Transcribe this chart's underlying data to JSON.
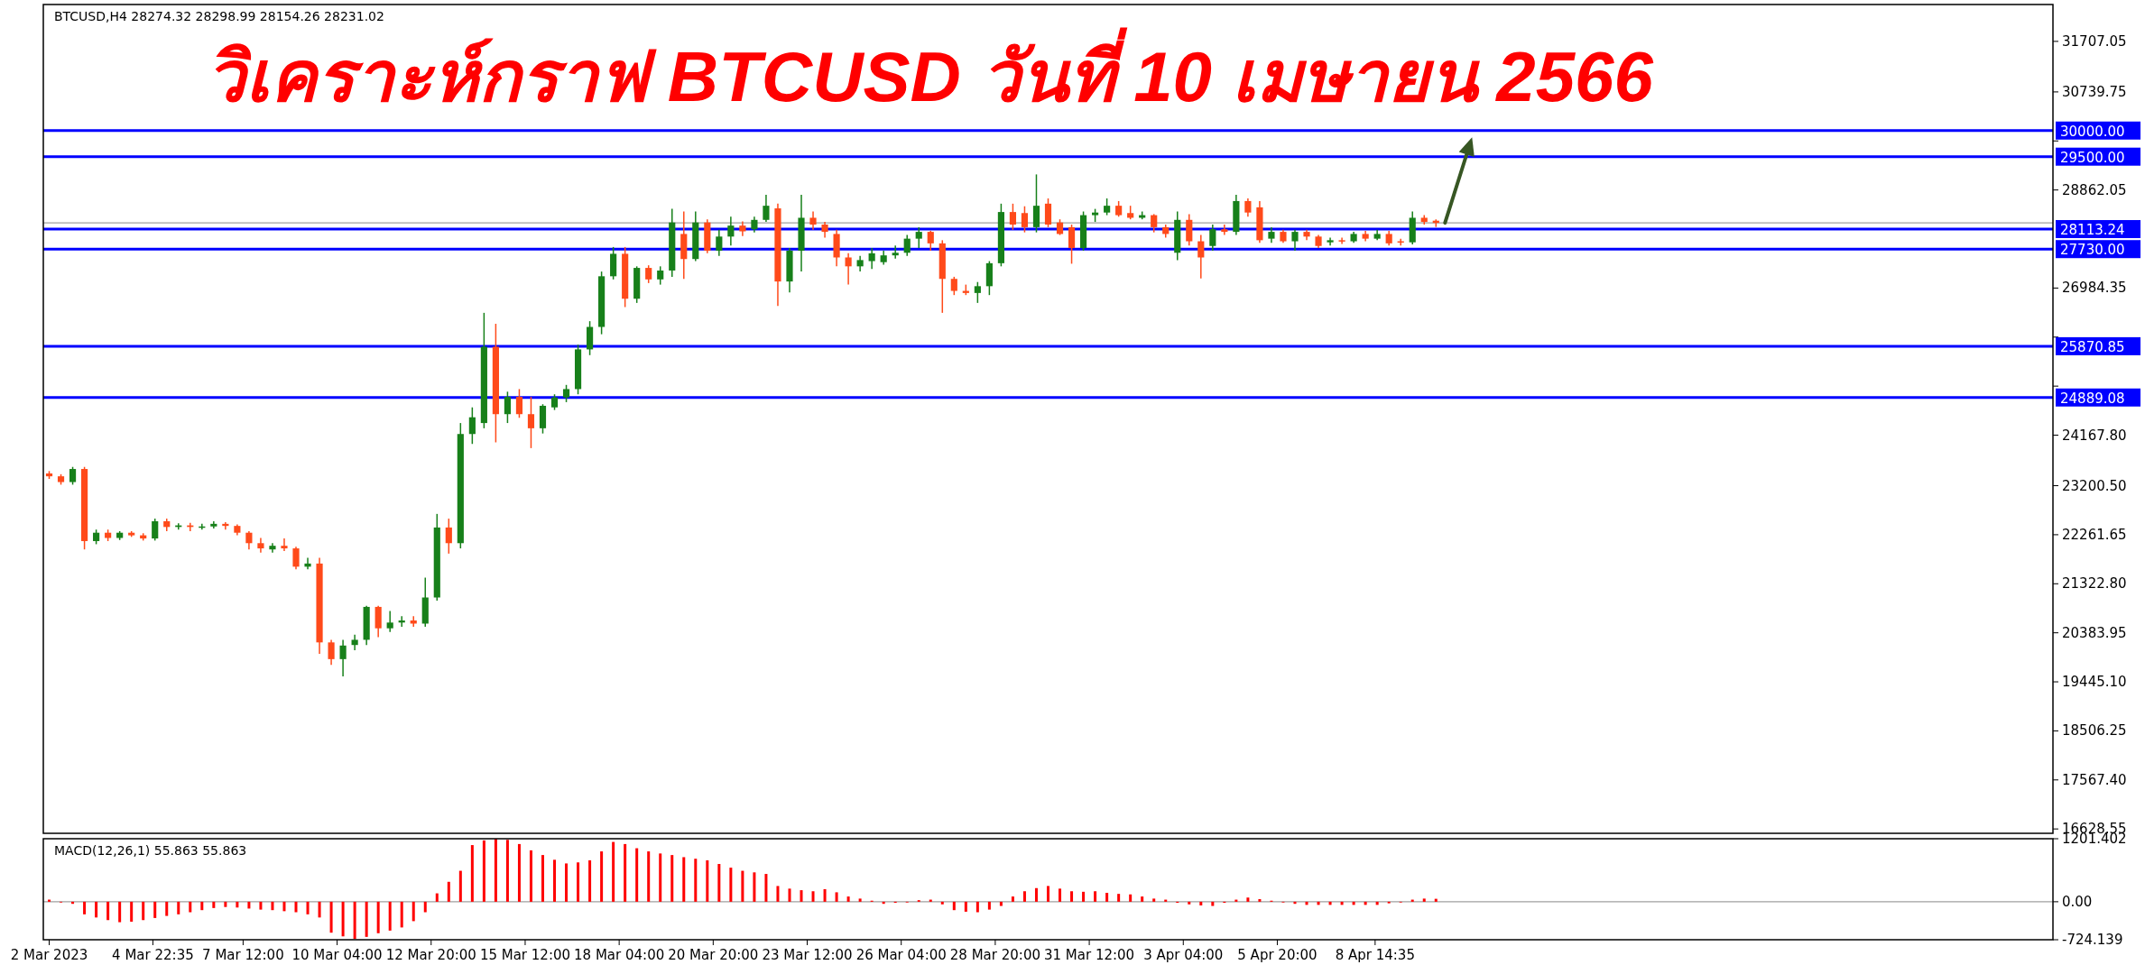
{
  "chart_data": [
    {
      "type": "candlestick",
      "title": "วิเคราะห์กราฟ BTCUSD วันที่ 10 เมษายน 2566",
      "annotations": [
        "BTCUSD,H4 28274.32 28298.99 28154.26 28231.02"
      ],
      "x": [
        "2023-03-02T00:00",
        "2023-03-02T08:00",
        "2023-03-02T16:00",
        "2023-03-03T00:00",
        "2023-03-03T08:00",
        "2023-03-03T16:00",
        "2023-03-04T00:00",
        "2023-03-04T08:00",
        "2023-03-04T16:00",
        "2023-03-05T00:00",
        "2023-03-05T08:00",
        "2023-03-05T16:00",
        "2023-03-06T00:00",
        "2023-03-06T08:00",
        "2023-03-06T16:00",
        "2023-03-07T00:00",
        "2023-03-07T08:00",
        "2023-03-07T16:00",
        "2023-03-08T00:00",
        "2023-03-08T08:00",
        "2023-03-08T16:00",
        "2023-03-09T00:00",
        "2023-03-09T08:00",
        "2023-03-09T16:00",
        "2023-03-10T00:00",
        "2023-03-10T08:00",
        "2023-03-10T16:00",
        "2023-03-11T00:00",
        "2023-03-11T08:00",
        "2023-03-11T16:00",
        "2023-03-12T00:00",
        "2023-03-12T08:00",
        "2023-03-12T16:00",
        "2023-03-13T00:00",
        "2023-03-13T08:00",
        "2023-03-13T16:00",
        "2023-03-14T00:00",
        "2023-03-14T08:00",
        "2023-03-14T16:00",
        "2023-03-15T00:00",
        "2023-03-15T08:00",
        "2023-03-15T16:00",
        "2023-03-16T00:00",
        "2023-03-16T08:00",
        "2023-03-16T16:00",
        "2023-03-17T00:00",
        "2023-03-17T08:00",
        "2023-03-17T16:00",
        "2023-03-18T00:00",
        "2023-03-18T08:00",
        "2023-03-18T16:00",
        "2023-03-19T00:00",
        "2023-03-19T08:00",
        "2023-03-19T16:00",
        "2023-03-20T00:00",
        "2023-03-20T08:00",
        "2023-03-20T16:00",
        "2023-03-21T00:00",
        "2023-03-21T08:00",
        "2023-03-21T16:00",
        "2023-03-22T00:00",
        "2023-03-22T08:00",
        "2023-03-22T16:00",
        "2023-03-23T00:00",
        "2023-03-23T08:00",
        "2023-03-23T16:00",
        "2023-03-24T00:00",
        "2023-03-24T08:00",
        "2023-03-24T16:00",
        "2023-03-25T00:00",
        "2023-03-25T08:00",
        "2023-03-25T16:00",
        "2023-03-26T00:00",
        "2023-03-26T08:00",
        "2023-03-26T16:00",
        "2023-03-27T00:00",
        "2023-03-27T08:00",
        "2023-03-27T16:00",
        "2023-03-28T00:00",
        "2023-03-28T08:00",
        "2023-03-28T16:00",
        "2023-03-29T00:00",
        "2023-03-29T08:00",
        "2023-03-29T16:00",
        "2023-03-30T00:00",
        "2023-03-30T08:00",
        "2023-03-30T16:00",
        "2023-03-31T00:00",
        "2023-03-31T08:00",
        "2023-03-31T16:00",
        "2023-04-01T00:00",
        "2023-04-01T08:00",
        "2023-04-01T16:00",
        "2023-04-02T00:00",
        "2023-04-02T08:00",
        "2023-04-02T16:00",
        "2023-04-03T00:00",
        "2023-04-03T08:00",
        "2023-04-03T16:00",
        "2023-04-04T00:00",
        "2023-04-04T08:00",
        "2023-04-04T16:00",
        "2023-04-05T00:00",
        "2023-04-05T08:00",
        "2023-04-05T16:00",
        "2023-04-06T00:00",
        "2023-04-06T08:00",
        "2023-04-06T16:00",
        "2023-04-07T00:00",
        "2023-04-07T08:00",
        "2023-04-07T16:00",
        "2023-04-08T00:00",
        "2023-04-08T08:00",
        "2023-04-08T16:00",
        "2023-04-09T00:00",
        "2023-04-09T08:00",
        "2023-04-09T16:00",
        "2023-04-10T00:00",
        "2023-04-10T08:00"
      ],
      "ohlc": [
        [
          23435,
          23480,
          23330,
          23380
        ],
        [
          23380,
          23420,
          23220,
          23270
        ],
        [
          23270,
          23560,
          23220,
          23520
        ],
        [
          23520,
          23560,
          21980,
          22140
        ],
        [
          22140,
          22360,
          22080,
          22300
        ],
        [
          22300,
          22360,
          22140,
          22200
        ],
        [
          22200,
          22330,
          22160,
          22300
        ],
        [
          22300,
          22330,
          22220,
          22250
        ],
        [
          22250,
          22290,
          22150,
          22190
        ],
        [
          22190,
          22570,
          22150,
          22520
        ],
        [
          22520,
          22570,
          22330,
          22410
        ],
        [
          22410,
          22480,
          22360,
          22440
        ],
        [
          22440,
          22490,
          22330,
          22410
        ],
        [
          22410,
          22470,
          22360,
          22420
        ],
        [
          22420,
          22520,
          22380,
          22470
        ],
        [
          22470,
          22500,
          22360,
          22430
        ],
        [
          22430,
          22460,
          22250,
          22300
        ],
        [
          22300,
          22330,
          21980,
          22100
        ],
        [
          22100,
          22200,
          21920,
          22000
        ],
        [
          21980,
          22100,
          21920,
          22050
        ],
        [
          22050,
          22190,
          21950,
          22000
        ],
        [
          22000,
          22030,
          21600,
          21650
        ],
        [
          21650,
          21820,
          21600,
          21710
        ],
        [
          21710,
          21820,
          19980,
          20200
        ],
        [
          20200,
          20250,
          19770,
          19880
        ],
        [
          19880,
          20250,
          19550,
          20140
        ],
        [
          20150,
          20350,
          20050,
          20250
        ],
        [
          20250,
          20900,
          20150,
          20880
        ],
        [
          20880,
          20900,
          20300,
          20470
        ],
        [
          20470,
          20800,
          20400,
          20580
        ],
        [
          20580,
          20700,
          20500,
          20620
        ],
        [
          20620,
          20700,
          20500,
          20560
        ],
        [
          20560,
          21440,
          20500,
          21060
        ],
        [
          21060,
          22660,
          21000,
          22400
        ],
        [
          22400,
          22570,
          21900,
          22100
        ],
        [
          22100,
          24400,
          22000,
          24190
        ],
        [
          24190,
          24700,
          24000,
          24510
        ],
        [
          24400,
          26510,
          24300,
          25860
        ],
        [
          25860,
          26300,
          24030,
          24570
        ],
        [
          24570,
          25000,
          24400,
          24900
        ],
        [
          24900,
          25050,
          24500,
          24570
        ],
        [
          24570,
          24900,
          23920,
          24300
        ],
        [
          24300,
          24760,
          24200,
          24730
        ],
        [
          24700,
          24950,
          24650,
          24890
        ],
        [
          24890,
          25130,
          24800,
          25050
        ],
        [
          25050,
          25900,
          24950,
          25810
        ],
        [
          25810,
          26350,
          25700,
          26240
        ],
        [
          26240,
          27300,
          26100,
          27210
        ],
        [
          27210,
          27770,
          27150,
          27640
        ],
        [
          27640,
          27770,
          26620,
          26780
        ],
        [
          26780,
          27400,
          26700,
          27370
        ],
        [
          27370,
          27420,
          27080,
          27150
        ],
        [
          27150,
          27400,
          27050,
          27320
        ],
        [
          27320,
          28500,
          27200,
          28240
        ],
        [
          28020,
          28450,
          27160,
          27540
        ],
        [
          27540,
          28450,
          27500,
          28240
        ],
        [
          28240,
          28300,
          27650,
          27700
        ],
        [
          27700,
          28100,
          27600,
          27970
        ],
        [
          27970,
          28350,
          27800,
          28180
        ],
        [
          28180,
          28260,
          27980,
          28070
        ],
        [
          28110,
          28350,
          28050,
          28290
        ],
        [
          28290,
          28770,
          28250,
          28560
        ],
        [
          28510,
          28600,
          26640,
          27110
        ],
        [
          27110,
          27750,
          26900,
          27700
        ],
        [
          27700,
          28770,
          27300,
          28330
        ],
        [
          28330,
          28450,
          28100,
          28200
        ],
        [
          28200,
          28250,
          27950,
          28060
        ],
        [
          28020,
          28100,
          27400,
          27570
        ],
        [
          27570,
          27650,
          27050,
          27400
        ],
        [
          27400,
          27600,
          27300,
          27520
        ],
        [
          27500,
          27750,
          27350,
          27650
        ],
        [
          27480,
          27700,
          27430,
          27610
        ],
        [
          27610,
          27800,
          27550,
          27660
        ],
        [
          27660,
          28000,
          27600,
          27930
        ],
        [
          27930,
          28150,
          27750,
          28060
        ],
        [
          28060,
          28080,
          27700,
          27840
        ],
        [
          27840,
          27900,
          26510,
          27160
        ],
        [
          27160,
          27200,
          26850,
          26930
        ],
        [
          26930,
          27050,
          26850,
          26890
        ],
        [
          26890,
          27100,
          26700,
          27020
        ],
        [
          27020,
          27500,
          26850,
          27460
        ],
        [
          27460,
          28600,
          27400,
          28440
        ],
        [
          28440,
          28600,
          28100,
          28200
        ],
        [
          28420,
          28550,
          28050,
          28150
        ],
        [
          28150,
          29160,
          28050,
          28560
        ],
        [
          28600,
          28700,
          28150,
          28200
        ],
        [
          28240,
          28300,
          28000,
          28020
        ],
        [
          28150,
          28200,
          27450,
          27750
        ],
        [
          27750,
          28450,
          27700,
          28380
        ],
        [
          28380,
          28500,
          28250,
          28430
        ],
        [
          28430,
          28700,
          28380,
          28560
        ],
        [
          28560,
          28650,
          28350,
          28380
        ],
        [
          28420,
          28560,
          28300,
          28330
        ],
        [
          28330,
          28450,
          28300,
          28380
        ],
        [
          28380,
          28400,
          28050,
          28150
        ],
        [
          28150,
          28200,
          27950,
          28020
        ],
        [
          27660,
          28450,
          27520,
          28290
        ],
        [
          28290,
          28400,
          27800,
          27880
        ],
        [
          27880,
          28000,
          27170,
          27570
        ],
        [
          27790,
          28200,
          27700,
          28110
        ],
        [
          28110,
          28200,
          28000,
          28060
        ],
        [
          28060,
          28770,
          28000,
          28650
        ],
        [
          28650,
          28700,
          28350,
          28430
        ],
        [
          28530,
          28650,
          27850,
          27900
        ],
        [
          27930,
          28150,
          27850,
          28060
        ],
        [
          28060,
          28100,
          27850,
          27880
        ],
        [
          27880,
          28100,
          27700,
          28060
        ],
        [
          28060,
          28100,
          27900,
          27970
        ],
        [
          27970,
          28000,
          27750,
          27790
        ],
        [
          27860,
          27950,
          27800,
          27900
        ],
        [
          27900,
          27950,
          27830,
          27880
        ],
        [
          27880,
          28060,
          27850,
          28020
        ],
        [
          28020,
          28080,
          27880,
          27930
        ],
        [
          27930,
          28100,
          27900,
          28020
        ],
        [
          28020,
          28080,
          27800,
          27840
        ],
        [
          27880,
          27930,
          27800,
          27860
        ],
        [
          27860,
          28450,
          27820,
          28330
        ],
        [
          28330,
          28380,
          28200,
          28250
        ],
        [
          28274.32,
          28298.99,
          28154.26,
          28231.02
        ]
      ],
      "xlim": [
        "2023-03-01T20:00",
        "2023-04-27T20:00"
      ],
      "ylim": [
        16545,
        32413
      ],
      "yticks": [
        {
          "value": 31707.05,
          "label": "31707.05"
        },
        {
          "value": 30739.75,
          "label": "30739.75"
        },
        {
          "value": 29800.9,
          "label": null
        },
        {
          "value": 28862.05,
          "label": "28862.05"
        },
        {
          "value": 26984.35,
          "label": "26984.35"
        },
        {
          "value": 26045.5,
          "label": null
        },
        {
          "value": 25106.65,
          "label": null
        },
        {
          "value": 24167.8,
          "label": "24167.80"
        },
        {
          "value": 23200.5,
          "label": "23200.50"
        },
        {
          "value": 22261.65,
          "label": "22261.65"
        },
        {
          "value": 21322.8,
          "label": "21322.80"
        },
        {
          "value": 20383.95,
          "label": "20383.95"
        },
        {
          "value": 19445.1,
          "label": "19445.10"
        },
        {
          "value": 18506.25,
          "label": "18506.25"
        },
        {
          "value": 17567.4,
          "label": "17567.40"
        },
        {
          "value": 16628.55,
          "label": "16628.55"
        }
      ],
      "ref_lines": [
        {
          "axis": "y",
          "value": 28231.02,
          "label": null,
          "color": "#a0a0a0"
        },
        {
          "axis": "y",
          "value": 30000,
          "label": "30000.00",
          "color": "#0000ff"
        },
        {
          "axis": "y",
          "value": 29500,
          "label": "29500.00",
          "color": "#0000ff"
        },
        {
          "axis": "y",
          "value": 28113.24,
          "label": "28113.24",
          "color": "#0000ff"
        },
        {
          "axis": "y",
          "value": 27730,
          "label": "27730.00",
          "color": "#0000ff"
        },
        {
          "axis": "y",
          "value": 25870.85,
          "label": "25870.85",
          "color": "#0000ff"
        },
        {
          "axis": "y",
          "value": 24889.08,
          "label": "24889.08",
          "color": "#0000ff"
        }
      ],
      "tick_labels": "y"
    },
    {
      "type": "bar",
      "annotations": [
        "MACD(12,26,1) 55.863 55.863"
      ],
      "color": "#ff0000",
      "x": [
        "2023-03-02T00:00",
        "2023-03-02T08:00",
        "2023-03-02T16:00",
        "2023-03-03T00:00",
        "2023-03-03T08:00",
        "2023-03-03T16:00",
        "2023-03-04T00:00",
        "2023-03-04T08:00",
        "2023-03-04T16:00",
        "2023-03-05T00:00",
        "2023-03-05T08:00",
        "2023-03-05T16:00",
        "2023-03-06T00:00",
        "2023-03-06T08:00",
        "2023-03-06T16:00",
        "2023-03-07T00:00",
        "2023-03-07T08:00",
        "2023-03-07T16:00",
        "2023-03-08T00:00",
        "2023-03-08T08:00",
        "2023-03-08T16:00",
        "2023-03-09T00:00",
        "2023-03-09T08:00",
        "2023-03-09T16:00",
        "2023-03-10T00:00",
        "2023-03-10T08:00",
        "2023-03-10T16:00",
        "2023-03-11T00:00",
        "2023-03-11T08:00",
        "2023-03-11T16:00",
        "2023-03-12T00:00",
        "2023-03-12T08:00",
        "2023-03-12T16:00",
        "2023-03-13T00:00",
        "2023-03-13T08:00",
        "2023-03-13T16:00",
        "2023-03-14T00:00",
        "2023-03-14T08:00",
        "2023-03-14T16:00",
        "2023-03-15T00:00",
        "2023-03-15T08:00",
        "2023-03-15T16:00",
        "2023-03-16T00:00",
        "2023-03-16T08:00",
        "2023-03-16T16:00",
        "2023-03-17T00:00",
        "2023-03-17T08:00",
        "2023-03-17T16:00",
        "2023-03-18T00:00",
        "2023-03-18T08:00",
        "2023-03-18T16:00",
        "2023-03-19T00:00",
        "2023-03-19T08:00",
        "2023-03-19T16:00",
        "2023-03-20T00:00",
        "2023-03-20T08:00",
        "2023-03-20T16:00",
        "2023-03-21T00:00",
        "2023-03-21T08:00",
        "2023-03-21T16:00",
        "2023-03-22T00:00",
        "2023-03-22T08:00",
        "2023-03-22T16:00",
        "2023-03-23T00:00",
        "2023-03-23T08:00",
        "2023-03-23T16:00",
        "2023-03-24T00:00",
        "2023-03-24T08:00",
        "2023-03-24T16:00",
        "2023-03-25T00:00",
        "2023-03-25T08:00",
        "2023-03-25T16:00",
        "2023-03-26T00:00",
        "2023-03-26T08:00",
        "2023-03-26T16:00",
        "2023-03-27T00:00",
        "2023-03-27T08:00",
        "2023-03-27T16:00",
        "2023-03-28T00:00",
        "2023-03-28T08:00",
        "2023-03-28T16:00",
        "2023-03-29T00:00",
        "2023-03-29T08:00",
        "2023-03-29T16:00",
        "2023-03-30T00:00",
        "2023-03-30T08:00",
        "2023-03-30T16:00",
        "2023-03-31T00:00",
        "2023-03-31T08:00",
        "2023-03-31T16:00",
        "2023-04-01T00:00",
        "2023-04-01T08:00",
        "2023-04-01T16:00",
        "2023-04-02T00:00",
        "2023-04-02T08:00",
        "2023-04-02T16:00",
        "2023-04-03T00:00",
        "2023-04-03T08:00",
        "2023-04-03T16:00",
        "2023-04-04T00:00",
        "2023-04-04T08:00",
        "2023-04-04T16:00",
        "2023-04-05T00:00",
        "2023-04-05T08:00",
        "2023-04-05T16:00",
        "2023-04-06T00:00",
        "2023-04-06T08:00",
        "2023-04-06T16:00",
        "2023-04-07T00:00",
        "2023-04-07T08:00",
        "2023-04-07T16:00",
        "2023-04-08T00:00",
        "2023-04-08T08:00",
        "2023-04-08T16:00",
        "2023-04-09T00:00",
        "2023-04-09T08:00",
        "2023-04-09T16:00",
        "2023-04-10T00:00",
        "2023-04-10T08:00"
      ],
      "values": [
        40,
        0,
        -40,
        -240,
        -300,
        -350,
        -390,
        -380,
        -350,
        -310,
        -270,
        -240,
        -200,
        -160,
        -120,
        -100,
        -110,
        -130,
        -150,
        -160,
        -180,
        -200,
        -240,
        -300,
        -590,
        -660,
        -710,
        -670,
        -600,
        -550,
        -490,
        -370,
        -200,
        160,
        380,
        590,
        1080,
        1170,
        1200,
        1180,
        1100,
        980,
        890,
        800,
        730,
        750,
        790,
        960,
        1140,
        1100,
        1020,
        960,
        920,
        890,
        850,
        820,
        790,
        720,
        650,
        590,
        560,
        530,
        300,
        250,
        220,
        200,
        240,
        180,
        100,
        60,
        20,
        -40,
        -20,
        0,
        30,
        40,
        -50,
        -160,
        -190,
        -200,
        -150,
        -80,
        100,
        200,
        260,
        300,
        250,
        200,
        190,
        200,
        170,
        150,
        140,
        100,
        60,
        40,
        -20,
        -50,
        -70,
        -80,
        -20,
        40,
        80,
        50,
        20,
        0,
        -40,
        -60,
        -60,
        -60,
        -60,
        -60,
        -60,
        -60,
        -30,
        0,
        40,
        60,
        56
      ],
      "xlim": [
        "2023-03-01T20:00",
        "2023-04-27T20:00"
      ],
      "ylim": [
        -724.139,
        1201.402
      ],
      "yticks": [
        1201.402,
        {
          "value": 0,
          "label": "0.00"
        },
        -724.139
      ],
      "xticks": [
        {
          "value": "2023-03-02T00:00",
          "label": "2 Mar 2023"
        },
        {
          "value": "2023-03-04T22:35",
          "label": "4 Mar 22:35"
        },
        {
          "value": "2023-03-07T12:00",
          "label": "7 Mar 12:00"
        },
        {
          "value": "2023-03-10T04:00",
          "label": "10 Mar 04:00"
        },
        {
          "value": "2023-03-12T20:00",
          "label": "12 Mar 20:00"
        },
        {
          "value": "2023-03-15T12:00",
          "label": "15 Mar 12:00"
        },
        {
          "value": "2023-03-18T04:00",
          "label": "18 Mar 04:00"
        },
        {
          "value": "2023-03-20T20:00",
          "label": "20 Mar 20:00"
        },
        {
          "value": "2023-03-23T12:00",
          "label": "23 Mar 12:00"
        },
        {
          "value": "2023-03-26T04:00",
          "label": "26 Mar 04:00"
        },
        {
          "value": "2023-03-28T20:00",
          "label": "28 Mar 20:00"
        },
        {
          "value": "2023-03-31T12:00",
          "label": "31 Mar 12:00"
        },
        {
          "value": "2023-04-03T04:00",
          "label": "3 Apr 04:00"
        },
        {
          "value": "2023-04-05T20:00",
          "label": "5 Apr 20:00"
        },
        {
          "value": "2023-04-08T14:35",
          "label": "8 Apr 14:35"
        }
      ],
      "ref_lines": [
        {
          "axis": "y",
          "value": 0,
          "label": null,
          "color": "#a0a0a0"
        }
      ]
    }
  ]
}
